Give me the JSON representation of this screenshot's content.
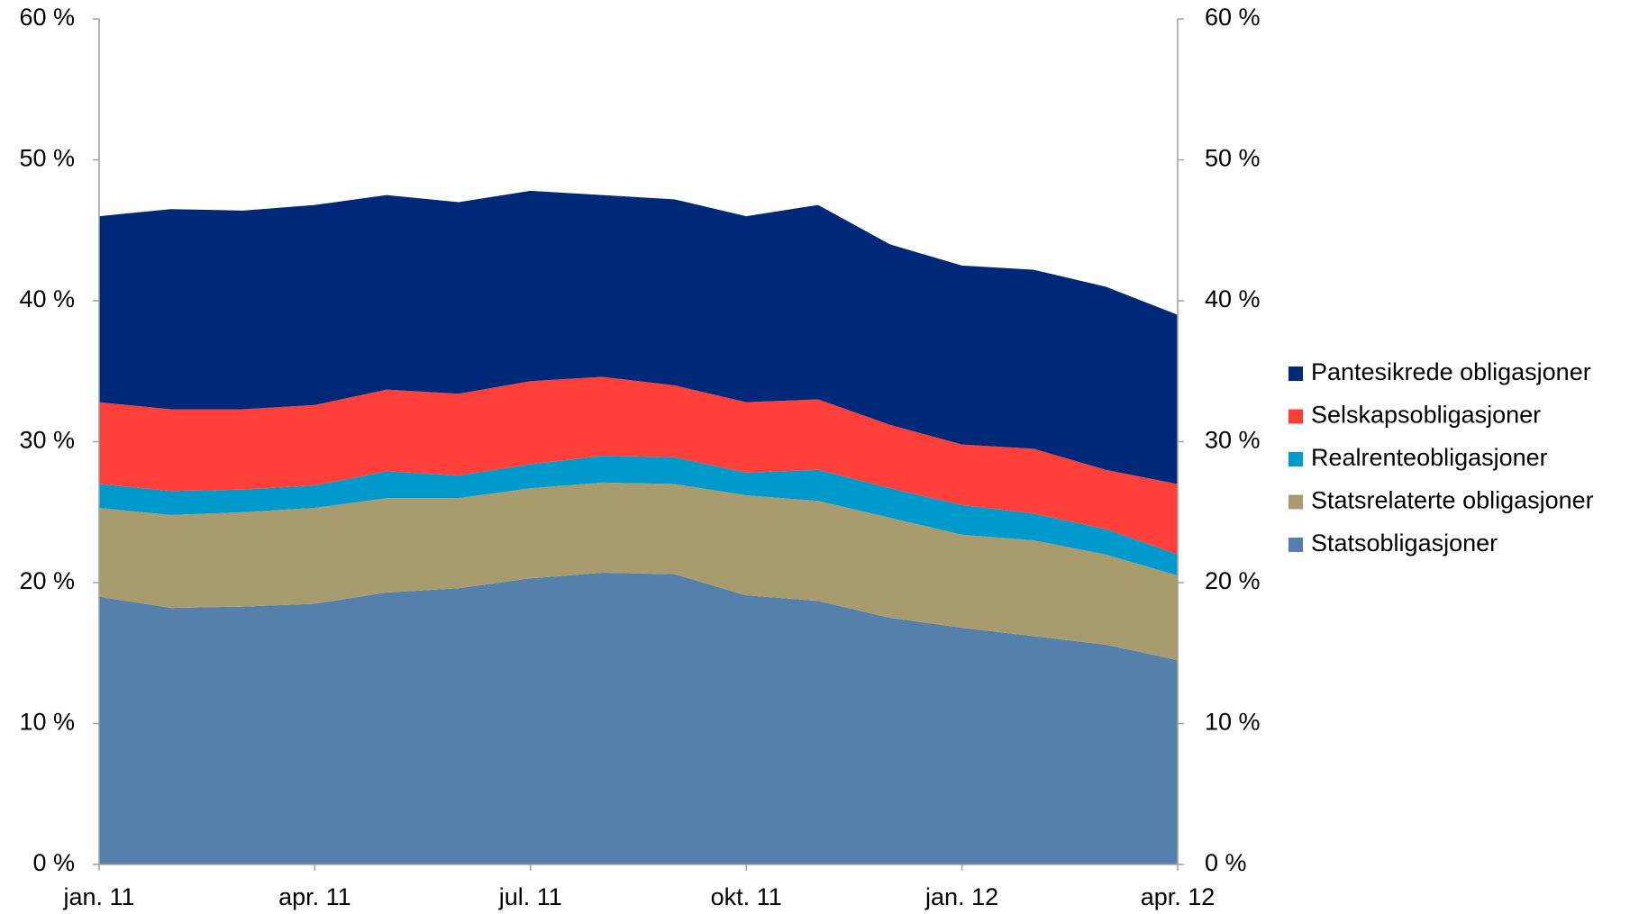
{
  "chart_data": {
    "type": "stacked_area",
    "categories": [
      "jan. 11",
      null,
      null,
      "apr. 11",
      null,
      null,
      "jul. 11",
      null,
      null,
      "okt. 11",
      null,
      null,
      "jan. 12",
      null,
      null,
      "apr. 12"
    ],
    "series": [
      {
        "name": "Statsobligasjoner",
        "color": "#5480ab",
        "values": [
          19,
          18.2,
          18.3,
          18.5,
          19.3,
          19.6,
          20.3,
          20.7,
          20.6,
          19.1,
          18.7,
          17.5,
          16.8,
          16.2,
          15.6,
          14.5
        ]
      },
      {
        "name": "Statsrelaterte obligasjoner",
        "color": "#a89c6f",
        "values": [
          6.3,
          6.6,
          6.7,
          6.8,
          6.7,
          6.4,
          6.4,
          6.4,
          6.4,
          7.1,
          7.1,
          7.1,
          6.6,
          6.8,
          6.4,
          6.0
        ]
      },
      {
        "name": "Realrenteobligasjoner",
        "color": "#0099cc",
        "values": [
          1.7,
          1.7,
          1.6,
          1.6,
          1.9,
          1.6,
          1.7,
          1.9,
          1.9,
          1.6,
          2.2,
          2.1,
          2.1,
          1.9,
          1.8,
          1.5
        ]
      },
      {
        "name": "Selskapsobligasjoner",
        "color": "#ff3f3a",
        "values": [
          5.8,
          5.8,
          5.7,
          5.7,
          5.8,
          5.8,
          5.9,
          5.6,
          5.1,
          5.0,
          5.0,
          4.5,
          4.3,
          4.6,
          4.2,
          5.0
        ]
      },
      {
        "name": "Pantesikrede obligasjoner",
        "color": "#002878",
        "values": [
          13.2,
          14.2,
          14.1,
          14.2,
          13.8,
          13.6,
          13.5,
          12.9,
          13.2,
          13.2,
          13.8,
          12.8,
          12.7,
          12.7,
          13.0,
          12.0
        ]
      }
    ],
    "ylim": [
      0,
      60
    ],
    "yticks": [
      {
        "value": 0,
        "label": "0 %"
      },
      {
        "value": 10,
        "label": "10 %"
      },
      {
        "value": 20,
        "label": "20 %"
      },
      {
        "value": 30,
        "label": "30 %"
      },
      {
        "value": 40,
        "label": "40 %"
      },
      {
        "value": 50,
        "label": "50 %"
      },
      {
        "value": 60,
        "label": "60 %"
      }
    ],
    "y2lim": [
      0,
      60
    ],
    "y2ticks": [
      {
        "value": 0,
        "label": "0 %"
      },
      {
        "value": 10,
        "label": "10 %"
      },
      {
        "value": 20,
        "label": "20 %"
      },
      {
        "value": 30,
        "label": "30 %"
      },
      {
        "value": 40,
        "label": "40 %"
      },
      {
        "value": 50,
        "label": "50 %"
      },
      {
        "value": 60,
        "label": "60 %"
      }
    ],
    "legend": "right"
  }
}
